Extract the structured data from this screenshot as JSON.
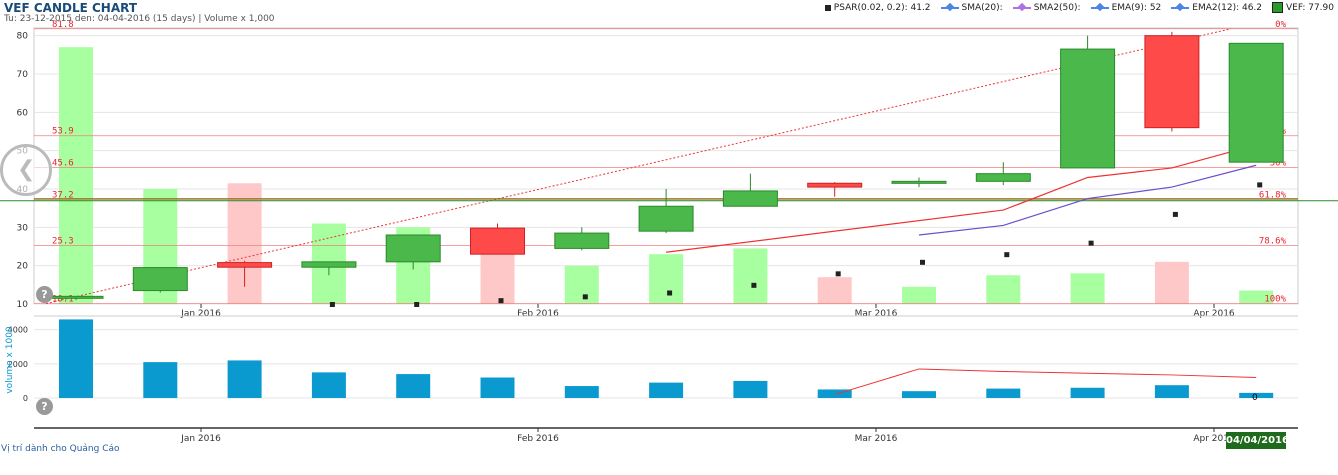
{
  "title": "VEF CANDLE CHART",
  "subtitle": "Tu: 23-12-2015 den: 04-04-2016 (15 days) | Volume x 1,000",
  "legend": [
    {
      "label": "PSAR(0.02, 0.2): 41.2",
      "color": "#222222",
      "marker": "square"
    },
    {
      "label": "SMA(20):",
      "color": "#4a86e8",
      "marker": "line-diamond"
    },
    {
      "label": "SMA2(50):",
      "color": "#b070e0",
      "marker": "line-diamond"
    },
    {
      "label": "EMA(9): 52",
      "color": "#4a86e8",
      "marker": "line-diamond"
    },
    {
      "label": "EMA2(12): 46.2",
      "color": "#4a86e8",
      "marker": "line-diamond"
    },
    {
      "label": "VEF: 77.90",
      "color": "#2a9a2a",
      "marker": "square-filled"
    }
  ],
  "ad_text": "Vị trí dành cho Quảng Cáo",
  "date_badge": "04/04/2016",
  "volume_axis_label": "volume x 1000",
  "colors": {
    "up": "#4ab84a",
    "up_border": "#2a8a2a",
    "down": "#ff4a4a",
    "down_border": "#d02020",
    "vol_up": "#a8ffa0",
    "vol_down": "#ffc8c8",
    "vol_bar": "#0a9ad0",
    "sma": "#e33",
    "ema2": "#6a4fd0",
    "fib": "#f08080",
    "hline": "#6a7a00",
    "crosshair": "#2a8a2a"
  },
  "chart_data": {
    "type": "candlestick",
    "x_ticks": [
      "Jan 2016",
      "Feb 2016",
      "Mar 2016",
      "Apr 2016"
    ],
    "y_ticks": [
      10,
      20,
      30,
      40,
      50,
      60,
      70,
      80
    ],
    "ylim": [
      10,
      82
    ],
    "candles": [
      {
        "o": 11.5,
        "c": 12,
        "h": 12,
        "l": 11
      },
      {
        "o": 13.5,
        "c": 19.5,
        "h": 19.5,
        "l": 13
      },
      {
        "o": 20.8,
        "c": 19.6,
        "h": 21.3,
        "l": 14.5
      },
      {
        "o": 19.6,
        "c": 21,
        "h": 21,
        "l": 17.5
      },
      {
        "o": 21,
        "c": 28,
        "h": 28,
        "l": 19
      },
      {
        "o": 29.8,
        "c": 23,
        "h": 31,
        "l": 23
      },
      {
        "o": 24.5,
        "c": 28.5,
        "h": 30,
        "l": 24
      },
      {
        "o": 29,
        "c": 35.5,
        "h": 40,
        "l": 28.5
      },
      {
        "o": 35.5,
        "c": 39.5,
        "h": 44,
        "l": 35.5
      },
      {
        "o": 41.5,
        "c": 40.5,
        "h": 41.8,
        "l": 38
      },
      {
        "o": 41.5,
        "c": 42,
        "h": 43,
        "l": 40.5
      },
      {
        "o": 42,
        "c": 44,
        "h": 47,
        "l": 41
      },
      {
        "o": 45.5,
        "c": 76.5,
        "h": 80,
        "l": 45.5
      },
      {
        "o": 80,
        "c": 56,
        "h": 81,
        "l": 55
      },
      {
        "o": 47,
        "c": 78,
        "h": 78,
        "l": 47
      }
    ],
    "bg_volumes": [
      {
        "v": 77,
        "up": true
      },
      {
        "v": 40,
        "up": true
      },
      {
        "v": 41.5,
        "up": false
      },
      {
        "v": 31,
        "up": true
      },
      {
        "v": 30,
        "up": true
      },
      {
        "v": 28,
        "up": false
      },
      {
        "v": 20,
        "up": true
      },
      {
        "v": 23,
        "up": true
      },
      {
        "v": 24.5,
        "up": true
      },
      {
        "v": 17,
        "up": false
      },
      {
        "v": 14.5,
        "up": true
      },
      {
        "v": 17.5,
        "up": true
      },
      {
        "v": 18,
        "up": true
      },
      {
        "v": 21,
        "up": false
      },
      {
        "v": 13.5,
        "up": true
      }
    ],
    "psar": [
      null,
      null,
      null,
      10,
      10,
      11,
      12,
      13,
      15,
      18,
      21,
      23,
      26,
      33.5,
      41.2
    ],
    "sma": [
      null,
      null,
      null,
      null,
      null,
      null,
      null,
      23.5,
      null,
      null,
      null,
      34.5,
      43,
      45.5,
      51.5
    ],
    "ema2": [
      null,
      null,
      null,
      null,
      null,
      null,
      null,
      null,
      null,
      null,
      28,
      30.5,
      37.5,
      40.5,
      46.2
    ],
    "fib_lines": [
      {
        "value": 81.8,
        "left": "81.8",
        "right": "0%"
      },
      {
        "value": 53.9,
        "left": "53.9",
        "right": "38.2%"
      },
      {
        "value": 45.6,
        "left": "45.6",
        "right": "50%"
      },
      {
        "value": 37.2,
        "left": "37.2",
        "right": "61.8%"
      },
      {
        "value": 25.3,
        "left": "25.3",
        "right": "78.6%"
      },
      {
        "value": 10.1,
        "left": "10.1",
        "right": "100%"
      }
    ],
    "crosshair_y": 37.2,
    "trend_line": {
      "from": [
        0,
        10.1
      ],
      "to": [
        13.7,
        81.8
      ]
    },
    "volume": {
      "y_ticks": [
        "0",
        "2000",
        "4000"
      ],
      "ylim": [
        0,
        4800
      ],
      "values": [
        4600,
        2100,
        2200,
        1500,
        1400,
        1200,
        700,
        900,
        1000,
        500,
        400,
        550,
        600,
        750,
        300
      ],
      "sma": [
        null,
        null,
        null,
        null,
        null,
        null,
        null,
        null,
        null,
        200,
        1700,
        1550,
        1450,
        1350,
        1200
      ],
      "last_label": "0"
    }
  }
}
